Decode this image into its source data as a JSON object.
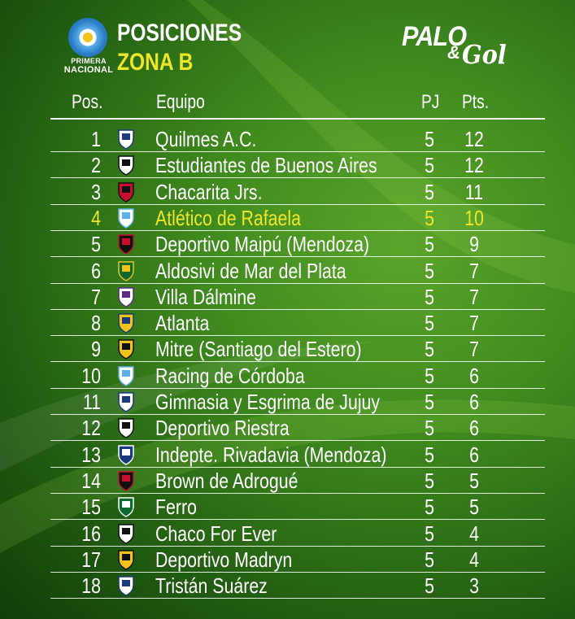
{
  "header": {
    "league_line1": "PRIMERA",
    "league_line2": "NACIONAL",
    "title": "POSICIONES",
    "subtitle": "ZONA B",
    "brand_palo": "PALO",
    "brand_amp": "&",
    "brand_gol": "Gol"
  },
  "columns": {
    "pos": "Pos.",
    "team": "Equipo",
    "pj": "PJ",
    "pts": "Pts."
  },
  "colors": {
    "highlight": "#f0e52a",
    "text": "#ffffff",
    "background": "#3f8a1e"
  },
  "rows": [
    {
      "pos": "1",
      "team": "Quilmes A.C.",
      "pj": "5",
      "pts": "12",
      "crest": "quilmes-crest"
    },
    {
      "pos": "2",
      "team": "Estudiantes de Buenos Aires",
      "pj": "5",
      "pts": "12",
      "crest": "estudiantes-crest"
    },
    {
      "pos": "3",
      "team": "Chacarita Jrs.",
      "pj": "5",
      "pts": "11",
      "crest": "chacarita-crest"
    },
    {
      "pos": "4",
      "team": "Atlético de Rafaela",
      "pj": "5",
      "pts": "10",
      "crest": "rafaela-crest",
      "highlight": true
    },
    {
      "pos": "5",
      "team": "Deportivo Maipú (Mendoza)",
      "pj": "5",
      "pts": "9",
      "crest": "maipu-crest"
    },
    {
      "pos": "6",
      "team": "Aldosivi de Mar del Plata",
      "pj": "5",
      "pts": "7",
      "crest": "aldosivi-crest"
    },
    {
      "pos": "7",
      "team": "Villa Dálmine",
      "pj": "5",
      "pts": "7",
      "crest": "villa-dalmine-crest"
    },
    {
      "pos": "8",
      "team": "Atlanta",
      "pj": "5",
      "pts": "7",
      "crest": "atlanta-crest"
    },
    {
      "pos": "9",
      "team": "Mitre (Santiago del Estero)",
      "pj": "5",
      "pts": "7",
      "crest": "mitre-crest"
    },
    {
      "pos": "10",
      "team": "Racing de Córdoba",
      "pj": "5",
      "pts": "6",
      "crest": "racing-cordoba-crest"
    },
    {
      "pos": "11",
      "team": "Gimnasia y Esgrima de Jujuy",
      "pj": "5",
      "pts": "6",
      "crest": "gimnasia-jujuy-crest"
    },
    {
      "pos": "12",
      "team": "Deportivo Riestra",
      "pj": "5",
      "pts": "6",
      "crest": "riestra-crest"
    },
    {
      "pos": "13",
      "team": "Indepte. Rivadavia (Mendoza)",
      "pj": "5",
      "pts": "6",
      "crest": "rivadavia-crest"
    },
    {
      "pos": "14",
      "team": "Brown de Adrogué",
      "pj": "5",
      "pts": "5",
      "crest": "brown-crest"
    },
    {
      "pos": "15",
      "team": "Ferro",
      "pj": "5",
      "pts": "5",
      "crest": "ferro-crest"
    },
    {
      "pos": "16",
      "team": "Chaco For Ever",
      "pj": "5",
      "pts": "4",
      "crest": "chaco-crest"
    },
    {
      "pos": "17",
      "team": "Deportivo Madryn",
      "pj": "5",
      "pts": "4",
      "crest": "madryn-crest"
    },
    {
      "pos": "18",
      "team": "Tristán Suárez",
      "pj": "5",
      "pts": "3",
      "crest": "tristan-suarez-crest"
    }
  ]
}
